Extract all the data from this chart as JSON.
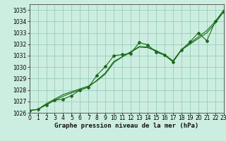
{
  "background_color": "#cceee0",
  "grid_color": "#99ccbb",
  "line_color": "#1a6b1a",
  "marker_color": "#1a6b1a",
  "xlabel": "Graphe pression niveau de la mer (hPa)",
  "xlabel_fontsize": 6.5,
  "ylabel_min": 1026,
  "ylabel_max": 1035,
  "x_min": 0,
  "x_max": 23,
  "series": [
    [
      1026.2,
      1026.3,
      1026.7,
      1027.1,
      1027.2,
      1027.5,
      1028.0,
      1028.25,
      1029.3,
      1030.05,
      1031.0,
      1031.1,
      1031.2,
      1032.15,
      1031.95,
      1031.3,
      1031.05,
      1030.45,
      1031.5,
      1032.2,
      1033.0,
      1032.3,
      1034.0,
      1034.85
    ],
    [
      1026.2,
      1026.3,
      1026.7,
      1027.1,
      1027.45,
      1027.75,
      1028.0,
      1028.25,
      1028.85,
      1029.5,
      1030.5,
      1030.9,
      1031.35,
      1031.8,
      1031.75,
      1031.45,
      1031.05,
      1030.5,
      1031.5,
      1032.0,
      1032.5,
      1033.0,
      1033.85,
      1034.85
    ],
    [
      1026.2,
      1026.3,
      1026.8,
      1027.2,
      1027.6,
      1027.85,
      1028.1,
      1028.35,
      1028.8,
      1029.4,
      1030.4,
      1030.9,
      1031.3,
      1031.75,
      1031.7,
      1031.4,
      1031.1,
      1030.55,
      1031.55,
      1032.1,
      1032.65,
      1033.2,
      1034.0,
      1035.0
    ]
  ],
  "tick_fontsize": 5.5,
  "xtick_labels": [
    "0",
    "1",
    "2",
    "3",
    "4",
    "5",
    "6",
    "7",
    "8",
    "9",
    "10",
    "11",
    "12",
    "13",
    "14",
    "15",
    "16",
    "17",
    "18",
    "19",
    "20",
    "21",
    "22",
    "23"
  ]
}
